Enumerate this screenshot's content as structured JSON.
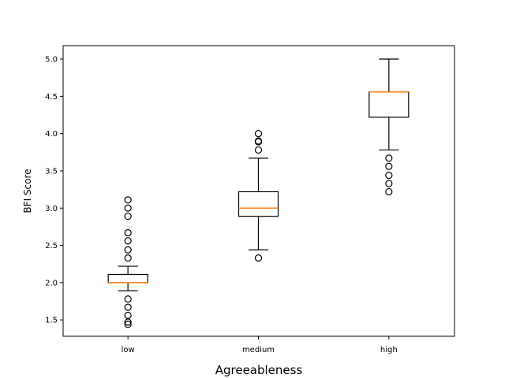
{
  "chart_data": {
    "type": "box",
    "title": "",
    "xlabel": "Agreeableness",
    "ylabel": "BFI Score",
    "ylim": [
      1.28,
      5.18
    ],
    "yticks": [
      1.5,
      2.0,
      2.5,
      3.0,
      3.5,
      4.0,
      4.5,
      5.0
    ],
    "ytick_labels": [
      "1.5",
      "2.0",
      "2.5",
      "3.0",
      "3.5",
      "4.0",
      "4.5",
      "5.0"
    ],
    "grid": false,
    "categories": [
      "low",
      "medium",
      "high"
    ],
    "boxes": [
      {
        "category": "low",
        "whisker_low": 1.89,
        "q1": 2.0,
        "median": 2.0,
        "q3": 2.11,
        "whisker_high": 2.22,
        "outliers": [
          1.44,
          1.47,
          1.56,
          1.67,
          1.78,
          2.33,
          2.44,
          2.56,
          2.67,
          2.89,
          3.0,
          3.11
        ]
      },
      {
        "category": "medium",
        "whisker_low": 2.44,
        "q1": 2.89,
        "median": 3.0,
        "q3": 3.22,
        "whisker_high": 3.67,
        "outliers": [
          2.33,
          3.78,
          3.89,
          3.9,
          4.0
        ]
      },
      {
        "category": "high",
        "whisker_low": 3.78,
        "q1": 4.22,
        "median": 4.56,
        "q3": 4.56,
        "whisker_high": 5.0,
        "outliers": [
          3.22,
          3.33,
          3.44,
          3.56,
          3.67
        ]
      }
    ],
    "colors": {
      "box": "#000000",
      "median": "#ff7f0e",
      "outlier": "#000000"
    }
  }
}
